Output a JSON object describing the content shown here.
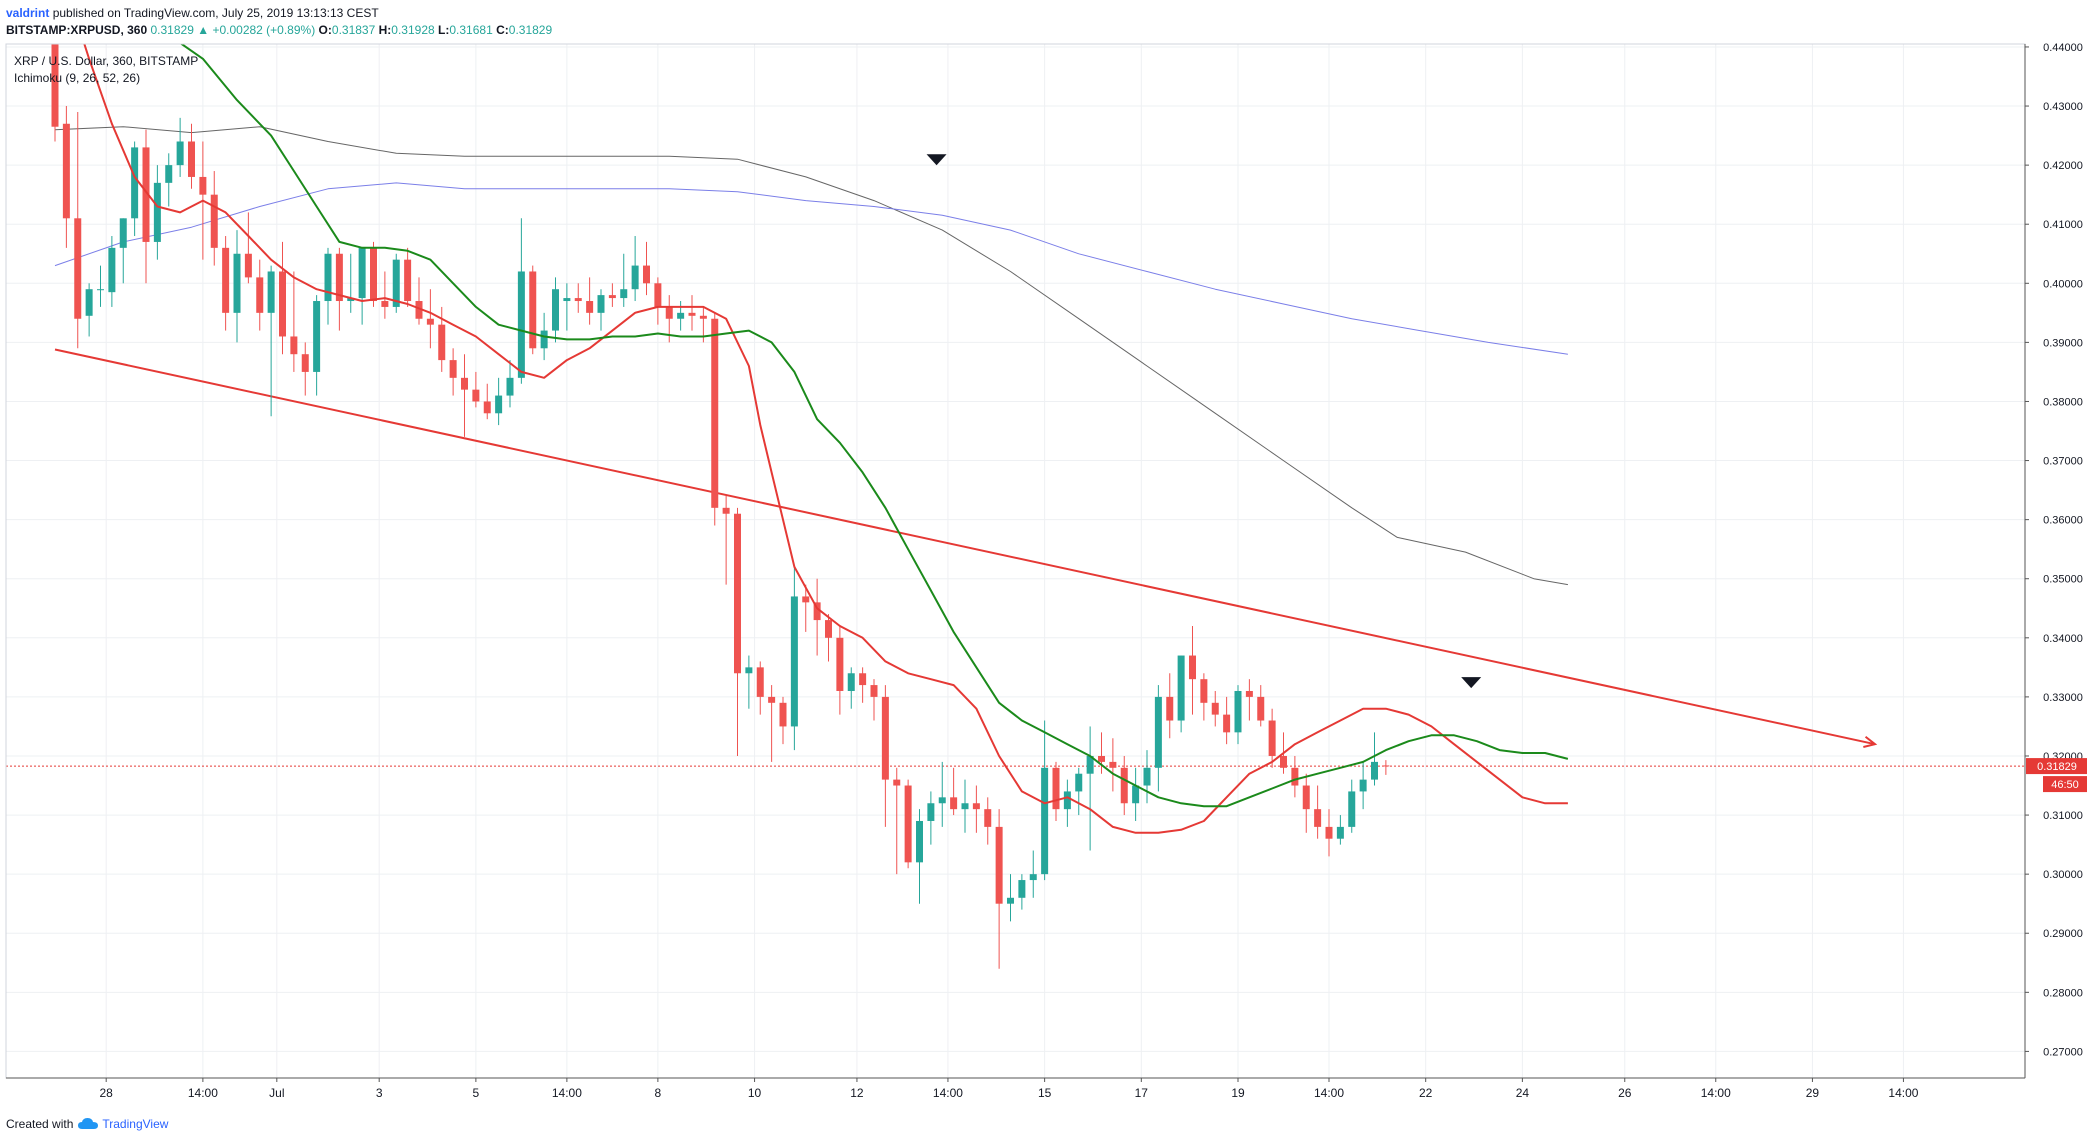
{
  "header": {
    "author": "valdrint",
    "published": "published on TradingView.com, July 25, 2019 13:13:13 CEST"
  },
  "quote": {
    "symbol": "BITSTAMP:XRPUSD, 360",
    "last": "0.31829",
    "change": "+0.00282 (+0.89%)",
    "o_label": "O:",
    "o": "0.31837",
    "h_label": "H:",
    "h": "0.31928",
    "l_label": "L:",
    "l": "0.31681",
    "c_label": "C:",
    "c": "0.31829"
  },
  "legend": {
    "series_title": "XRP / U.S. Dollar, 360, BITSTAMP",
    "indicator": "Ichimoku (9, 26, 52, 26)"
  },
  "footer": {
    "created_with": "Created with",
    "brand": "TradingView"
  },
  "colors": {
    "bull": "#26a69a",
    "bear": "#ef5350",
    "conversion_line": "#e53935",
    "base_line": "#1b8a1b",
    "span_gray": "#666666",
    "span_blue": "#7b7fe8",
    "trendline": "#e53935",
    "price_line": "#e53935",
    "grid": "#eef0f3",
    "axis": "#555555"
  },
  "chart_data": {
    "type": "candlestick",
    "ylim": [
      0.2655,
      0.4405
    ],
    "y_ticks": [
      "0.44000",
      "0.43000",
      "0.42000",
      "0.41000",
      "0.40000",
      "0.39000",
      "0.38000",
      "0.37000",
      "0.36000",
      "0.35000",
      "0.34000",
      "0.33000",
      "0.32000",
      "0.31000",
      "0.30000",
      "0.29000",
      "0.28000",
      "0.27000"
    ],
    "x_ticks": [
      {
        "label": "28",
        "i": 4.5
      },
      {
        "label": "14:00",
        "i": 13
      },
      {
        "label": "Jul",
        "i": 19.5
      },
      {
        "label": "3",
        "i": 28.5
      },
      {
        "label": "5",
        "i": 37
      },
      {
        "label": "14:00",
        "i": 45
      },
      {
        "label": "8",
        "i": 53
      },
      {
        "label": "10",
        "i": 61.5
      },
      {
        "label": "12",
        "i": 70.5
      },
      {
        "label": "14:00",
        "i": 78.5
      },
      {
        "label": "15",
        "i": 87
      },
      {
        "label": "17",
        "i": 95.5
      },
      {
        "label": "19",
        "i": 104
      },
      {
        "label": "14:00",
        "i": 112
      },
      {
        "label": "22",
        "i": 120.5
      },
      {
        "label": "24",
        "i": 129
      },
      {
        "label": "26",
        "i": 138
      },
      {
        "label": "14:00",
        "i": 146
      },
      {
        "label": "29",
        "i": 154.5
      },
      {
        "label": "14:00",
        "i": 162.5
      }
    ],
    "last_price": {
      "value": 0.31829,
      "label": "0.31829",
      "countdown": "46:50"
    },
    "candles": [
      [
        0.46,
        0.465,
        0.424,
        0.4265
      ],
      [
        0.427,
        0.43,
        0.406,
        0.411
      ],
      [
        0.411,
        0.429,
        0.389,
        0.394
      ],
      [
        0.3945,
        0.4,
        0.391,
        0.399
      ],
      [
        0.399,
        0.403,
        0.396,
        0.399
      ],
      [
        0.3985,
        0.408,
        0.396,
        0.406
      ],
      [
        0.406,
        0.411,
        0.4,
        0.411
      ],
      [
        0.411,
        0.424,
        0.408,
        0.423
      ],
      [
        0.423,
        0.426,
        0.4,
        0.407
      ],
      [
        0.407,
        0.42,
        0.404,
        0.417
      ],
      [
        0.417,
        0.422,
        0.413,
        0.42
      ],
      [
        0.42,
        0.428,
        0.418,
        0.424
      ],
      [
        0.424,
        0.427,
        0.416,
        0.418
      ],
      [
        0.418,
        0.424,
        0.404,
        0.415
      ],
      [
        0.415,
        0.419,
        0.403,
        0.406
      ],
      [
        0.406,
        0.408,
        0.392,
        0.395
      ],
      [
        0.395,
        0.409,
        0.39,
        0.405
      ],
      [
        0.405,
        0.412,
        0.4,
        0.401
      ],
      [
        0.401,
        0.404,
        0.392,
        0.395
      ],
      [
        0.395,
        0.403,
        0.3775,
        0.402
      ],
      [
        0.402,
        0.407,
        0.388,
        0.391
      ],
      [
        0.391,
        0.402,
        0.385,
        0.388
      ],
      [
        0.388,
        0.39,
        0.381,
        0.385
      ],
      [
        0.385,
        0.398,
        0.381,
        0.397
      ],
      [
        0.397,
        0.406,
        0.393,
        0.405
      ],
      [
        0.405,
        0.406,
        0.392,
        0.397
      ],
      [
        0.397,
        0.405,
        0.395,
        0.3975
      ],
      [
        0.3975,
        0.406,
        0.393,
        0.406
      ],
      [
        0.406,
        0.407,
        0.396,
        0.397
      ],
      [
        0.397,
        0.402,
        0.394,
        0.396
      ],
      [
        0.396,
        0.405,
        0.395,
        0.404
      ],
      [
        0.404,
        0.406,
        0.396,
        0.397
      ],
      [
        0.397,
        0.401,
        0.393,
        0.394
      ],
      [
        0.394,
        0.399,
        0.389,
        0.393
      ],
      [
        0.393,
        0.396,
        0.385,
        0.387
      ],
      [
        0.387,
        0.389,
        0.381,
        0.384
      ],
      [
        0.384,
        0.388,
        0.374,
        0.382
      ],
      [
        0.382,
        0.385,
        0.379,
        0.38
      ],
      [
        0.38,
        0.383,
        0.377,
        0.378
      ],
      [
        0.378,
        0.384,
        0.376,
        0.381
      ],
      [
        0.381,
        0.387,
        0.379,
        0.384
      ],
      [
        0.384,
        0.411,
        0.383,
        0.402
      ],
      [
        0.402,
        0.403,
        0.388,
        0.389
      ],
      [
        0.389,
        0.395,
        0.387,
        0.392
      ],
      [
        0.392,
        0.401,
        0.39,
        0.399
      ],
      [
        0.397,
        0.4,
        0.392,
        0.3975
      ],
      [
        0.3975,
        0.4,
        0.395,
        0.397
      ],
      [
        0.397,
        0.401,
        0.393,
        0.395
      ],
      [
        0.395,
        0.399,
        0.392,
        0.398
      ],
      [
        0.398,
        0.4,
        0.396,
        0.3975
      ],
      [
        0.3975,
        0.405,
        0.396,
        0.399
      ],
      [
        0.399,
        0.408,
        0.397,
        0.403
      ],
      [
        0.403,
        0.407,
        0.398,
        0.4
      ],
      [
        0.4,
        0.401,
        0.393,
        0.396
      ],
      [
        0.396,
        0.398,
        0.39,
        0.394
      ],
      [
        0.394,
        0.397,
        0.392,
        0.395
      ],
      [
        0.395,
        0.398,
        0.392,
        0.3945
      ],
      [
        0.3945,
        0.396,
        0.39,
        0.394
      ],
      [
        0.394,
        0.395,
        0.359,
        0.362
      ],
      [
        0.362,
        0.364,
        0.349,
        0.361
      ],
      [
        0.361,
        0.362,
        0.32,
        0.334
      ],
      [
        0.334,
        0.337,
        0.328,
        0.335
      ],
      [
        0.335,
        0.336,
        0.327,
        0.33
      ],
      [
        0.33,
        0.332,
        0.319,
        0.329
      ],
      [
        0.329,
        0.33,
        0.322,
        0.325
      ],
      [
        0.325,
        0.352,
        0.321,
        0.347
      ],
      [
        0.347,
        0.349,
        0.341,
        0.346
      ],
      [
        0.346,
        0.35,
        0.337,
        0.343
      ],
      [
        0.343,
        0.344,
        0.336,
        0.34
      ],
      [
        0.34,
        0.342,
        0.327,
        0.331
      ],
      [
        0.331,
        0.335,
        0.328,
        0.334
      ],
      [
        0.334,
        0.335,
        0.329,
        0.332
      ],
      [
        0.332,
        0.333,
        0.326,
        0.33
      ],
      [
        0.33,
        0.332,
        0.308,
        0.316
      ],
      [
        0.316,
        0.318,
        0.3,
        0.315
      ],
      [
        0.315,
        0.316,
        0.301,
        0.302
      ],
      [
        0.302,
        0.311,
        0.295,
        0.309
      ],
      [
        0.309,
        0.314,
        0.305,
        0.312
      ],
      [
        0.312,
        0.319,
        0.308,
        0.313
      ],
      [
        0.313,
        0.318,
        0.31,
        0.311
      ],
      [
        0.311,
        0.316,
        0.307,
        0.312
      ],
      [
        0.312,
        0.315,
        0.307,
        0.311
      ],
      [
        0.311,
        0.313,
        0.305,
        0.308
      ],
      [
        0.308,
        0.311,
        0.284,
        0.295
      ],
      [
        0.295,
        0.3,
        0.292,
        0.296
      ],
      [
        0.296,
        0.3,
        0.294,
        0.299
      ],
      [
        0.299,
        0.304,
        0.296,
        0.3
      ],
      [
        0.3,
        0.326,
        0.299,
        0.318
      ],
      [
        0.318,
        0.319,
        0.309,
        0.311
      ],
      [
        0.311,
        0.316,
        0.308,
        0.314
      ],
      [
        0.314,
        0.318,
        0.31,
        0.317
      ],
      [
        0.317,
        0.325,
        0.304,
        0.32
      ],
      [
        0.32,
        0.324,
        0.317,
        0.319
      ],
      [
        0.319,
        0.323,
        0.314,
        0.318
      ],
      [
        0.318,
        0.32,
        0.31,
        0.312
      ],
      [
        0.312,
        0.318,
        0.309,
        0.315
      ],
      [
        0.315,
        0.321,
        0.312,
        0.318
      ],
      [
        0.318,
        0.332,
        0.314,
        0.33
      ],
      [
        0.33,
        0.334,
        0.323,
        0.326
      ],
      [
        0.326,
        0.337,
        0.324,
        0.337
      ],
      [
        0.337,
        0.342,
        0.327,
        0.333
      ],
      [
        0.333,
        0.334,
        0.326,
        0.329
      ],
      [
        0.329,
        0.331,
        0.325,
        0.327
      ],
      [
        0.327,
        0.33,
        0.322,
        0.324
      ],
      [
        0.324,
        0.332,
        0.322,
        0.331
      ],
      [
        0.331,
        0.333,
        0.326,
        0.33
      ],
      [
        0.33,
        0.332,
        0.325,
        0.326
      ],
      [
        0.326,
        0.328,
        0.318,
        0.32
      ],
      [
        0.32,
        0.324,
        0.317,
        0.318
      ],
      [
        0.318,
        0.32,
        0.313,
        0.315
      ],
      [
        0.315,
        0.317,
        0.307,
        0.311
      ],
      [
        0.311,
        0.315,
        0.306,
        0.308
      ],
      [
        0.308,
        0.311,
        0.303,
        0.306
      ],
      [
        0.306,
        0.31,
        0.305,
        0.308
      ],
      [
        0.308,
        0.316,
        0.307,
        0.314
      ],
      [
        0.314,
        0.319,
        0.311,
        0.316
      ],
      [
        0.316,
        0.324,
        0.315,
        0.319
      ],
      [
        0.3184,
        0.3193,
        0.3168,
        0.3183
      ]
    ],
    "conversion_line": [
      [
        1,
        0.45
      ],
      [
        3,
        0.438
      ],
      [
        5,
        0.427
      ],
      [
        7,
        0.418
      ],
      [
        9,
        0.413
      ],
      [
        11,
        0.412
      ],
      [
        13,
        0.414
      ],
      [
        15,
        0.412
      ],
      [
        17,
        0.408
      ],
      [
        19,
        0.404
      ],
      [
        21,
        0.401
      ],
      [
        23,
        0.399
      ],
      [
        25,
        0.398
      ],
      [
        27,
        0.397
      ],
      [
        29,
        0.3975
      ],
      [
        31,
        0.3965
      ],
      [
        33,
        0.395
      ],
      [
        35,
        0.393
      ],
      [
        37,
        0.391
      ],
      [
        39,
        0.388
      ],
      [
        41,
        0.385
      ],
      [
        43,
        0.384
      ],
      [
        45,
        0.387
      ],
      [
        47,
        0.389
      ],
      [
        49,
        0.392
      ],
      [
        51,
        0.395
      ],
      [
        53,
        0.396
      ],
      [
        55,
        0.396
      ],
      [
        57,
        0.396
      ],
      [
        59,
        0.394
      ],
      [
        61,
        0.386
      ],
      [
        62,
        0.376
      ],
      [
        63,
        0.368
      ],
      [
        65,
        0.352
      ],
      [
        67,
        0.345
      ],
      [
        69,
        0.342
      ],
      [
        71,
        0.34
      ],
      [
        73,
        0.336
      ],
      [
        75,
        0.334
      ],
      [
        77,
        0.333
      ],
      [
        79,
        0.332
      ],
      [
        81,
        0.328
      ],
      [
        83,
        0.32
      ],
      [
        85,
        0.314
      ],
      [
        87,
        0.312
      ],
      [
        89,
        0.313
      ],
      [
        91,
        0.311
      ],
      [
        93,
        0.308
      ],
      [
        95,
        0.307
      ],
      [
        97,
        0.307
      ],
      [
        99,
        0.3075
      ],
      [
        101,
        0.309
      ],
      [
        103,
        0.313
      ],
      [
        105,
        0.317
      ],
      [
        107,
        0.319
      ],
      [
        109,
        0.322
      ],
      [
        111,
        0.324
      ],
      [
        113,
        0.326
      ],
      [
        115,
        0.328
      ],
      [
        117,
        0.328
      ],
      [
        119,
        0.327
      ],
      [
        121,
        0.325
      ],
      [
        123,
        0.322
      ],
      [
        125,
        0.319
      ],
      [
        127,
        0.316
      ],
      [
        129,
        0.313
      ],
      [
        131,
        0.312
      ],
      [
        133,
        0.312
      ]
    ],
    "base_line": [
      [
        10,
        0.442
      ],
      [
        13,
        0.438
      ],
      [
        16,
        0.431
      ],
      [
        19,
        0.425
      ],
      [
        21,
        0.419
      ],
      [
        23,
        0.413
      ],
      [
        25,
        0.407
      ],
      [
        27,
        0.406
      ],
      [
        29,
        0.406
      ],
      [
        31,
        0.4055
      ],
      [
        33,
        0.404
      ],
      [
        35,
        0.4
      ],
      [
        37,
        0.396
      ],
      [
        39,
        0.393
      ],
      [
        41,
        0.392
      ],
      [
        43,
        0.391
      ],
      [
        45,
        0.3905
      ],
      [
        47,
        0.3905
      ],
      [
        49,
        0.391
      ],
      [
        51,
        0.391
      ],
      [
        53,
        0.3915
      ],
      [
        55,
        0.391
      ],
      [
        57,
        0.391
      ],
      [
        59,
        0.3915
      ],
      [
        61,
        0.392
      ],
      [
        63,
        0.39
      ],
      [
        65,
        0.385
      ],
      [
        67,
        0.377
      ],
      [
        69,
        0.373
      ],
      [
        71,
        0.368
      ],
      [
        73,
        0.362
      ],
      [
        75,
        0.355
      ],
      [
        77,
        0.348
      ],
      [
        79,
        0.341
      ],
      [
        81,
        0.335
      ],
      [
        83,
        0.329
      ],
      [
        85,
        0.326
      ],
      [
        87,
        0.324
      ],
      [
        89,
        0.322
      ],
      [
        91,
        0.32
      ],
      [
        93,
        0.317
      ],
      [
        95,
        0.315
      ],
      [
        97,
        0.313
      ],
      [
        99,
        0.312
      ],
      [
        101,
        0.3115
      ],
      [
        103,
        0.3115
      ],
      [
        105,
        0.313
      ],
      [
        107,
        0.3145
      ],
      [
        109,
        0.316
      ],
      [
        111,
        0.317
      ],
      [
        113,
        0.318
      ],
      [
        115,
        0.319
      ],
      [
        117,
        0.321
      ],
      [
        119,
        0.3225
      ],
      [
        121,
        0.3235
      ],
      [
        123,
        0.3235
      ],
      [
        125,
        0.3225
      ],
      [
        127,
        0.321
      ],
      [
        129,
        0.3205
      ],
      [
        131,
        0.3205
      ],
      [
        133,
        0.3195
      ]
    ],
    "span_gray": [
      [
        0,
        0.426
      ],
      [
        6,
        0.4265
      ],
      [
        12,
        0.4255
      ],
      [
        18,
        0.4265
      ],
      [
        24,
        0.424
      ],
      [
        30,
        0.422
      ],
      [
        36,
        0.4215
      ],
      [
        42,
        0.4215
      ],
      [
        48,
        0.4215
      ],
      [
        54,
        0.4215
      ],
      [
        60,
        0.421
      ],
      [
        66,
        0.418
      ],
      [
        72,
        0.414
      ],
      [
        78,
        0.409
      ],
      [
        84,
        0.402
      ],
      [
        90,
        0.394
      ],
      [
        96,
        0.386
      ],
      [
        102,
        0.378
      ],
      [
        108,
        0.37
      ],
      [
        114,
        0.362
      ],
      [
        118,
        0.357
      ],
      [
        124,
        0.3545
      ],
      [
        130,
        0.35
      ],
      [
        133,
        0.349
      ]
    ],
    "span_blue": [
      [
        0,
        0.403
      ],
      [
        6,
        0.407
      ],
      [
        12,
        0.4095
      ],
      [
        18,
        0.413
      ],
      [
        24,
        0.416
      ],
      [
        30,
        0.417
      ],
      [
        36,
        0.416
      ],
      [
        42,
        0.416
      ],
      [
        48,
        0.416
      ],
      [
        54,
        0.416
      ],
      [
        60,
        0.4155
      ],
      [
        66,
        0.414
      ],
      [
        72,
        0.413
      ],
      [
        78,
        0.4115
      ],
      [
        84,
        0.409
      ],
      [
        90,
        0.405
      ],
      [
        96,
        0.402
      ],
      [
        102,
        0.399
      ],
      [
        108,
        0.3965
      ],
      [
        114,
        0.394
      ],
      [
        120,
        0.392
      ],
      [
        126,
        0.39
      ],
      [
        133,
        0.388
      ]
    ],
    "trendline": {
      "from": [
        0,
        0.3888
      ],
      "to": [
        160,
        0.322
      ]
    },
    "markers": [
      {
        "i": 77.5,
        "value": 0.421
      },
      {
        "i": 124.5,
        "value": 0.3325
      }
    ]
  }
}
